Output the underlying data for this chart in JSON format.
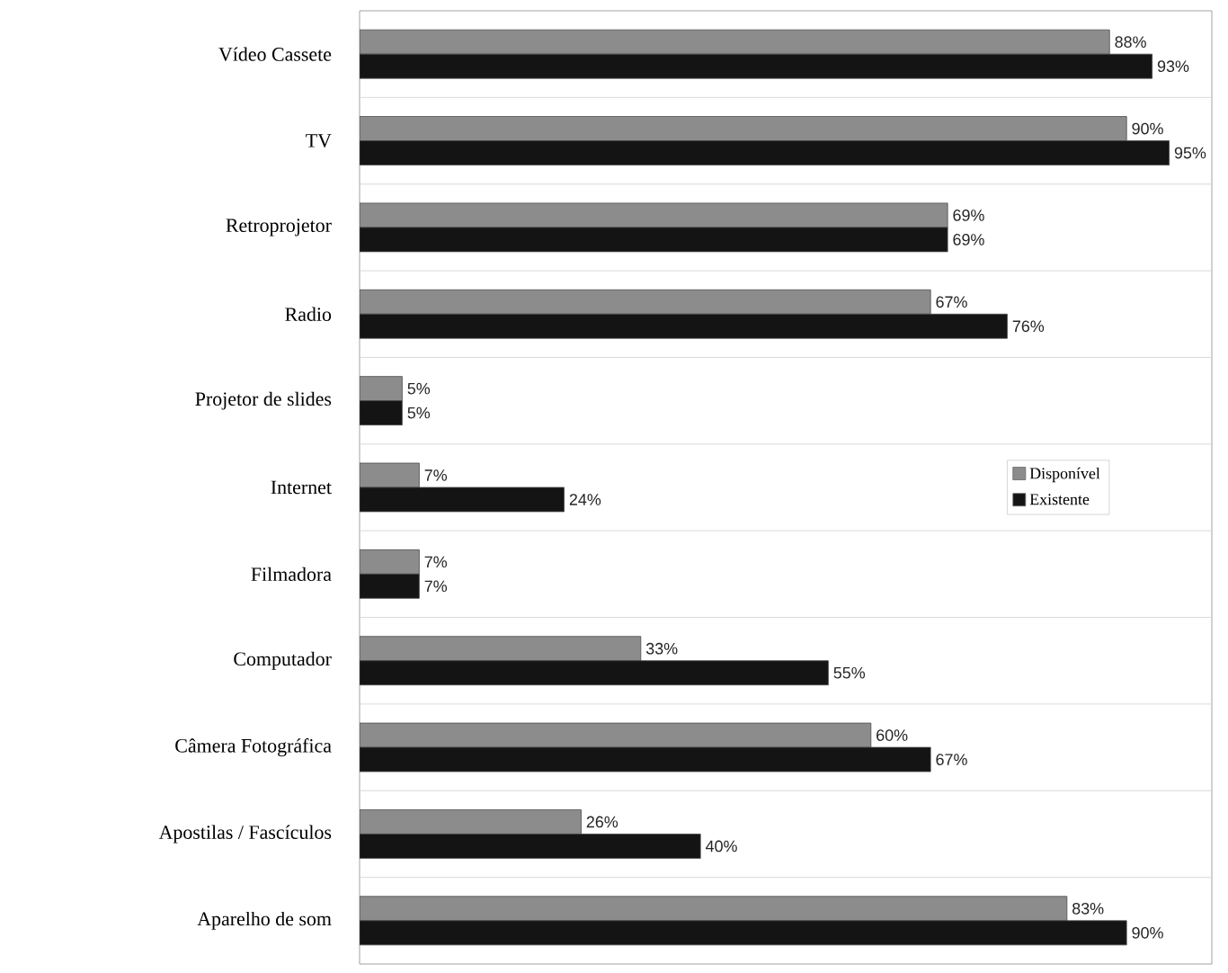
{
  "chart_data": {
    "type": "bar",
    "orientation": "horizontal",
    "categories": [
      "Vídeo Cassete",
      "TV",
      "Retroprojetor",
      "Radio",
      "Projetor de slides",
      "Internet",
      "Filmadora",
      "Computador",
      "Câmera Fotográfica",
      "Apostilas / Fascículos",
      "Aparelho de som"
    ],
    "series": [
      {
        "name": "Disponível",
        "color": "#8c8c8c",
        "values": [
          88,
          90,
          69,
          67,
          5,
          7,
          7,
          33,
          60,
          26,
          83
        ],
        "value_labels": [
          "88%",
          "90%",
          "69%",
          "67%",
          "5%",
          "7%",
          "7%",
          "33%",
          "60%",
          "26%",
          "83%"
        ]
      },
      {
        "name": "Existente",
        "color": "#141414",
        "values": [
          93,
          95,
          69,
          76,
          5,
          24,
          7,
          55,
          67,
          40,
          90
        ],
        "value_labels": [
          "93%",
          "95%",
          "69%",
          "76%",
          "5%",
          "24%",
          "7%",
          "55%",
          "67%",
          "40%",
          "90%"
        ]
      }
    ],
    "xlim": [
      0,
      100
    ],
    "grid": "y",
    "legend": "right",
    "tick_labels": "y"
  }
}
